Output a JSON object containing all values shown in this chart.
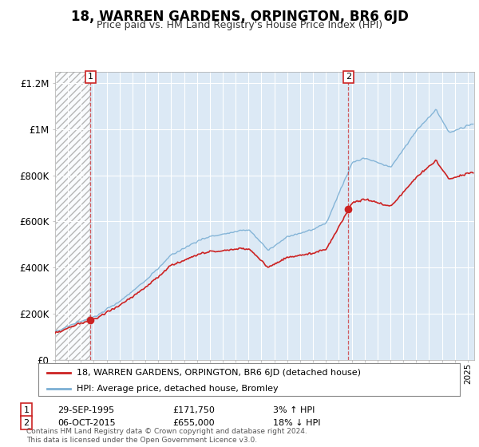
{
  "title": "18, WARREN GARDENS, ORPINGTON, BR6 6JD",
  "subtitle": "Price paid vs. HM Land Registry's House Price Index (HPI)",
  "legend_label1": "18, WARREN GARDENS, ORPINGTON, BR6 6JD (detached house)",
  "legend_label2": "HPI: Average price, detached house, Bromley",
  "annotation1_date": "29-SEP-1995",
  "annotation1_price": "£171,750",
  "annotation1_hpi": "3% ↑ HPI",
  "annotation2_date": "06-OCT-2015",
  "annotation2_price": "£655,000",
  "annotation2_hpi": "18% ↓ HPI",
  "footer": "Contains HM Land Registry data © Crown copyright and database right 2024.\nThis data is licensed under the Open Government Licence v3.0.",
  "line1_color": "#cc2222",
  "line2_color": "#7bafd4",
  "plot_bg_color": "#dce9f5",
  "marker1_x": 1995.75,
  "marker1_y": 171750,
  "marker2_x": 2015.75,
  "marker2_y": 655000,
  "xmin": 1993,
  "xmax": 2025.5,
  "ymin": 0,
  "ymax": 1250000,
  "yticks": [
    0,
    200000,
    400000,
    600000,
    800000,
    1000000,
    1200000
  ],
  "ytick_labels": [
    "£0",
    "£200K",
    "£400K",
    "£600K",
    "£800K",
    "£1M",
    "£1.2M"
  ]
}
